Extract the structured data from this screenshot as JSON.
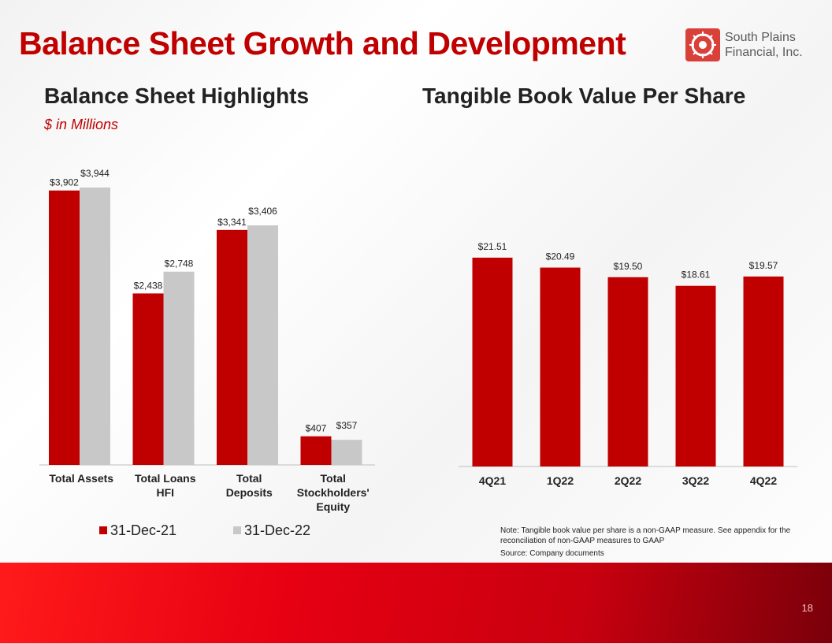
{
  "slide": {
    "title": "Balance Sheet Growth and Development",
    "logo_line1": "South Plains",
    "logo_line2": "Financial, Inc.",
    "left_heading": "Balance Sheet Highlights",
    "left_subtitle": "$ in Millions",
    "right_heading": "Tangible Book Value Per Share",
    "note": "Note: Tangible book value per share is a non-GAAP measure. See appendix for the reconciliation of non-GAAP measures to GAAP",
    "source": "Source: Company documents",
    "page_number": "18"
  },
  "colors": {
    "accent_red": "#c00000",
    "series_grey": "#c8c8c8"
  },
  "chart_data": [
    {
      "type": "bar",
      "title": "Balance Sheet Highlights",
      "subtitle": "$ in Millions",
      "categories": [
        [
          "Total Assets"
        ],
        [
          "Total Loans",
          "HFI"
        ],
        [
          "Total",
          "Deposits"
        ],
        [
          "Total",
          "Stockholders'",
          "Equity"
        ]
      ],
      "series": [
        {
          "name": "31-Dec-21",
          "color": "#c00000",
          "values": [
            3902,
            2438,
            3341,
            407
          ],
          "labels": [
            "$3,902",
            "$2,438",
            "$3,341",
            "$407"
          ]
        },
        {
          "name": "31-Dec-22",
          "color": "#c8c8c8",
          "values": [
            3944,
            2748,
            3406,
            357
          ],
          "labels": [
            "$3,944",
            "$2,748",
            "$3,406",
            "$357"
          ]
        }
      ],
      "ylim": [
        0,
        3944
      ],
      "legend": "bottom"
    },
    {
      "type": "bar",
      "title": "Tangible Book Value Per Share",
      "categories": [
        [
          "4Q21"
        ],
        [
          "1Q22"
        ],
        [
          "2Q22"
        ],
        [
          "3Q22"
        ],
        [
          "4Q22"
        ]
      ],
      "series": [
        {
          "name": "Tangible Book Value Per Share",
          "color": "#c00000",
          "values": [
            21.51,
            20.49,
            19.5,
            18.61,
            19.57
          ],
          "labels": [
            "$21.51",
            "$20.49",
            "$19.50",
            "$18.61",
            "$19.57"
          ]
        }
      ],
      "ylim": [
        0,
        21.51
      ]
    }
  ]
}
